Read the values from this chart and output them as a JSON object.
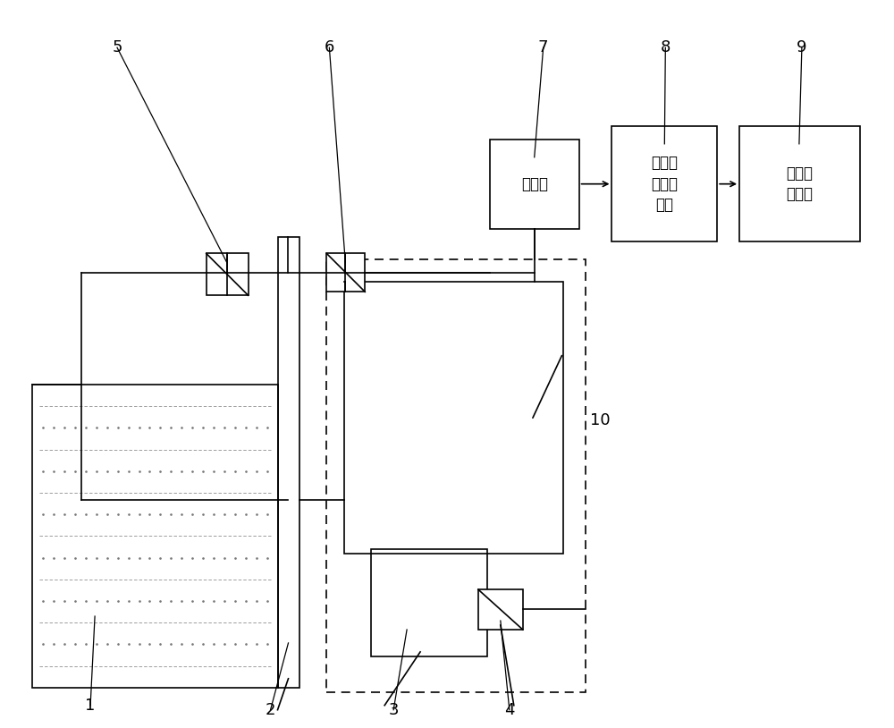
{
  "bg_color": "#ffffff",
  "lc": "#000000",
  "lw": 1.2,
  "fig_w": 10.0,
  "fig_h": 8.14,
  "dpi": 100,
  "text7": "控制盒",
  "text8": "数据采\n集处理\n模块",
  "text9": "数据显\n示模块",
  "label1": "1",
  "label2": "2",
  "label3": "3",
  "label4": "4",
  "label5": "5",
  "label6": "6",
  "label7": "7",
  "label8": "8",
  "label9": "9",
  "label10": "10"
}
